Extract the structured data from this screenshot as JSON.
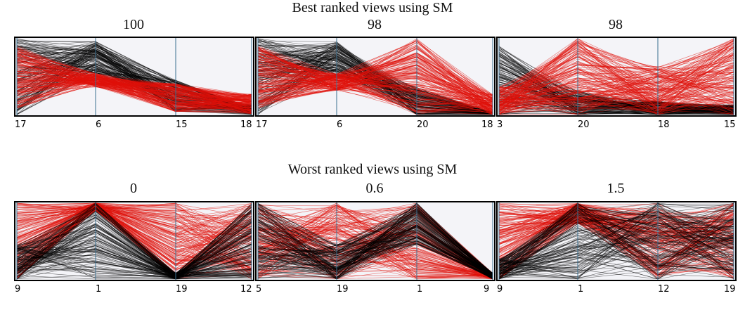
{
  "sections": [
    {
      "title": "Best ranked views using SM"
    },
    {
      "title": "Worst ranked views using SM"
    }
  ],
  "views": [
    {
      "score": "100",
      "axes": [
        "17",
        "6",
        "15",
        "18"
      ]
    },
    {
      "score": "98",
      "axes": [
        "17",
        "6",
        "20",
        "18"
      ]
    },
    {
      "score": "98",
      "axes": [
        "3",
        "20",
        "18",
        "15"
      ]
    },
    {
      "score": "0",
      "axes": [
        "9",
        "1",
        "19",
        "12"
      ]
    },
    {
      "score": "0.6",
      "axes": [
        "5",
        "19",
        "1",
        "9"
      ]
    },
    {
      "score": "1.5",
      "axes": [
        "9",
        "1",
        "12",
        "19"
      ]
    }
  ],
  "colors": {
    "class_a": "#000000",
    "class_b": "#e0100a",
    "axis": "#3a6f8f",
    "background": "#f4f4f8"
  }
}
